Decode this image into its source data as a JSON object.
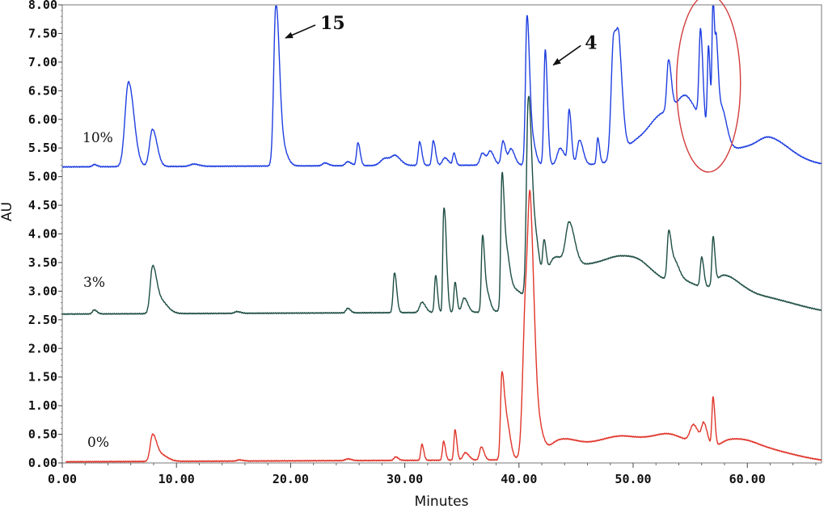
{
  "chart_data": {
    "type": "line",
    "xlabel": "Minutes",
    "ylabel": "AU",
    "xlim": [
      0,
      66.5
    ],
    "ylim": [
      0,
      8.0
    ],
    "x_ticks": [
      "0.00",
      "10.00",
      "20.00",
      "30.00",
      "40.00",
      "50.00",
      "60.00"
    ],
    "y_ticks": [
      "0.00",
      "0.50",
      "1.00",
      "1.50",
      "2.00",
      "2.50",
      "3.00",
      "3.50",
      "4.00",
      "4.50",
      "5.00",
      "5.50",
      "6.00",
      "6.50",
      "7.00",
      "7.50",
      "8.00"
    ],
    "grid": false,
    "series": [
      {
        "name": "10%",
        "color": "#1f3fe0",
        "baseline": 5.17,
        "peaks": [
          [
            2.8,
            5.21,
            0.15
          ],
          [
            5.8,
            6.65,
            0.3
          ],
          [
            7.9,
            5.82,
            0.25
          ],
          [
            11.5,
            5.21,
            0.3
          ],
          [
            18.7,
            7.82,
            0.18
          ],
          [
            19.1,
            5.6,
            0.3
          ],
          [
            23,
            5.22,
            0.2
          ],
          [
            25,
            5.24,
            0.2
          ],
          [
            25.9,
            5.57,
            0.12
          ],
          [
            28.3,
            5.3,
            0.4
          ],
          [
            29.2,
            5.3,
            0.3
          ],
          [
            31.3,
            5.58,
            0.12
          ],
          [
            32.5,
            5.6,
            0.12
          ],
          [
            33.5,
            5.3,
            0.2
          ],
          [
            34.3,
            5.38,
            0.1
          ],
          [
            36.8,
            5.38,
            0.2
          ],
          [
            37.5,
            5.4,
            0.2
          ],
          [
            38.6,
            5.59,
            0.15
          ],
          [
            39.3,
            5.45,
            0.2
          ],
          [
            40.7,
            7.72,
            0.13
          ],
          [
            41.1,
            5.65,
            0.2
          ],
          [
            42.3,
            7.18,
            0.12
          ],
          [
            43.6,
            5.46,
            0.25
          ],
          [
            44.4,
            6.1,
            0.12
          ],
          [
            45.3,
            5.6,
            0.2
          ],
          [
            46.9,
            5.62,
            0.1
          ],
          [
            48.3,
            7.3,
            0.22
          ],
          [
            48.8,
            6.4,
            0.2
          ],
          [
            50.5,
            5.55,
            1.4
          ],
          [
            52.8,
            5.8,
            1.2
          ],
          [
            53.1,
            6.06,
            0.15
          ],
          [
            54.8,
            5.9,
            0.9
          ],
          [
            55.9,
            6.75,
            0.13
          ],
          [
            56.6,
            6.72,
            0.1
          ],
          [
            57.0,
            7.6,
            0.09
          ],
          [
            57.3,
            6.5,
            0.1
          ],
          [
            57.7,
            5.9,
            0.3
          ],
          [
            60,
            5.45,
            2.2
          ],
          [
            62,
            5.42,
            1.0
          ]
        ]
      },
      {
        "name": "3%",
        "color": "#1e4e44",
        "baseline": 2.6,
        "peaks": [
          [
            2.8,
            2.67,
            0.15
          ],
          [
            7.9,
            3.35,
            0.2
          ],
          [
            8.5,
            2.85,
            0.4
          ],
          [
            15.3,
            2.63,
            0.2
          ],
          [
            25,
            2.68,
            0.15
          ],
          [
            29.1,
            3.3,
            0.12
          ],
          [
            31.5,
            2.78,
            0.2
          ],
          [
            32.7,
            3.25,
            0.1
          ],
          [
            33.4,
            4.25,
            0.08
          ],
          [
            33.6,
            3.5,
            0.1
          ],
          [
            34.4,
            3.13,
            0.1
          ],
          [
            35.2,
            2.85,
            0.2
          ],
          [
            36.8,
            3.8,
            0.1
          ],
          [
            37.1,
            3.0,
            0.2
          ],
          [
            38.5,
            4.6,
            0.1
          ],
          [
            38.8,
            3.6,
            0.2
          ],
          [
            39.5,
            2.95,
            0.5
          ],
          [
            40.8,
            5.5,
            0.15
          ],
          [
            41.2,
            4.0,
            0.3
          ],
          [
            42.2,
            3.25,
            0.12
          ],
          [
            43,
            3.05,
            0.5
          ],
          [
            44.4,
            3.35,
            0.3
          ],
          [
            45.5,
            3.4,
            2.5
          ],
          [
            49,
            2.9,
            1.5
          ],
          [
            51,
            2.92,
            1.5
          ],
          [
            53.1,
            3.3,
            0.12
          ],
          [
            53.5,
            3.0,
            0.3
          ],
          [
            55,
            2.95,
            1.3
          ],
          [
            56,
            3.12,
            0.12
          ],
          [
            57.0,
            3.42,
            0.1
          ],
          [
            58,
            2.95,
            0.8
          ],
          [
            60.5,
            2.88,
            2.2
          ]
        ]
      },
      {
        "name": "0%",
        "color": "#e0352a",
        "baseline": 0.02,
        "peaks": [
          [
            7.9,
            0.45,
            0.2
          ],
          [
            8.5,
            0.15,
            0.4
          ],
          [
            15.5,
            0.04,
            0.2
          ],
          [
            25,
            0.05,
            0.2
          ],
          [
            29.2,
            0.08,
            0.15
          ],
          [
            31.5,
            0.3,
            0.1
          ],
          [
            33.4,
            0.35,
            0.1
          ],
          [
            34.4,
            0.55,
            0.1
          ],
          [
            35.3,
            0.15,
            0.2
          ],
          [
            36.7,
            0.25,
            0.15
          ],
          [
            38.5,
            1.45,
            0.12
          ],
          [
            38.9,
            0.7,
            0.2
          ],
          [
            40.6,
            2.8,
            0.25
          ],
          [
            41.0,
            2.75,
            0.2
          ],
          [
            41.5,
            0.7,
            0.3
          ],
          [
            43.5,
            0.2,
            0.8
          ],
          [
            45.5,
            0.25,
            2.5
          ],
          [
            49.5,
            0.28,
            2.0
          ],
          [
            53.5,
            0.3,
            1.5
          ],
          [
            55.3,
            0.35,
            0.3
          ],
          [
            56.2,
            0.4,
            0.2
          ],
          [
            57.0,
            0.88,
            0.1
          ],
          [
            58.5,
            0.25,
            1.0
          ],
          [
            61,
            0.22,
            1.8
          ]
        ]
      }
    ],
    "annotations": [
      {
        "text": "15",
        "x": 18.7
      },
      {
        "text": "4",
        "x": 42.3
      }
    ],
    "highlight_ellipse": {
      "x_center": 56.6,
      "y_center": 6.63,
      "x_radius": 2.8,
      "y_radius": 1.55,
      "color": "#d23c3c"
    }
  }
}
